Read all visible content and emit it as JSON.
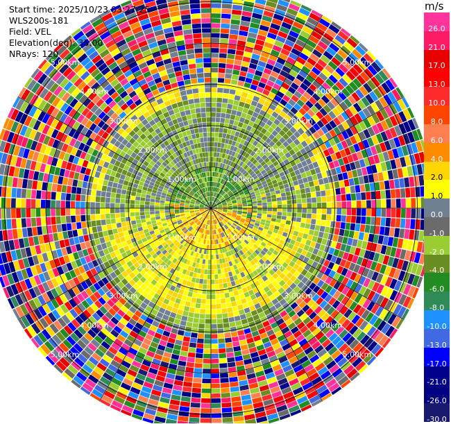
{
  "header": {
    "start_time": "Start time: 2025/10/23 03:27:25",
    "site": "WLS200s-181",
    "field": "Field: VEL",
    "elevation": "Elevation(deg): 35.00",
    "nrays": "NRays: 120"
  },
  "colorbar": {
    "unit": "m/s",
    "ticks": [
      "26.0",
      "21.0",
      "17.0",
      "13.0",
      "10.0",
      "8.0",
      "6.0",
      "4.0",
      "2.0",
      "1.0",
      "0.0",
      "-1.0",
      "-2.0",
      "-4.0",
      "-6.0",
      "-8.0",
      "-10.0",
      "-13.0",
      "-17.0",
      "-21.0",
      "-26.0",
      "-30.0"
    ],
    "colors": [
      "#ff3399",
      "#ff1a66",
      "#e60000",
      "#ff0000",
      "#ff2a2a",
      "#ff4500",
      "#ff7f50",
      "#ff8c00",
      "#ffd700",
      "#ffff00",
      "#708090",
      "#6b6b6b",
      "#9acd32",
      "#6b8e23",
      "#228b22",
      "#2e8b57",
      "#1e90ff",
      "#4169e1",
      "#0000ff",
      "#00008b",
      "#000080",
      "#191970"
    ]
  },
  "chart_data": {
    "type": "ppi",
    "field": "VEL",
    "unit": "m/s",
    "elevation_deg": 35.0,
    "n_rays": 120,
    "range_rings_km": [
      1.0,
      2.0,
      3.0,
      4.0,
      5.0
    ],
    "ring_labels": [
      "1.00km",
      "2.00km",
      "3.00km",
      "4.00km",
      "5.00km"
    ],
    "max_range_km": 5.4,
    "bands": [
      {
        "from_km": 0.0,
        "to_km": 1.0,
        "north_colors": [
          "#228b22",
          "#6b8e23",
          "#9acd32"
        ],
        "south_colors": [
          "#ff8c00",
          "#ffd700",
          "#ffff00"
        ]
      },
      {
        "from_km": 1.0,
        "to_km": 2.6,
        "north_colors": [
          "#9acd32",
          "#6b8e23",
          "#708090"
        ],
        "south_colors": [
          "#ffff00",
          "#ffd700",
          "#9acd32"
        ]
      },
      {
        "from_km": 2.6,
        "to_km": 3.0,
        "north_colors": [
          "#ffff00",
          "#ffd700",
          "#708090"
        ],
        "south_colors": [
          "#9acd32",
          "#6b8e23",
          "#708090"
        ]
      },
      {
        "from_km": 3.0,
        "to_km": 5.4,
        "north_colors": [
          "noise"
        ],
        "south_colors": [
          "noise"
        ]
      }
    ]
  }
}
